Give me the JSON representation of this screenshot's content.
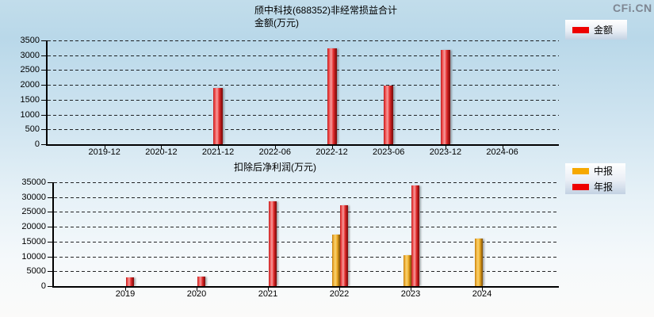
{
  "logo": "CFi.CN",
  "colors": {
    "annual_red": "#ee0000",
    "interim_yellow": "#f6a800",
    "grid_black": "#000000",
    "logo_gray": "#7e8692"
  },
  "chart_data": [
    {
      "type": "bar",
      "title": "颀中科技(688352)非经常损益合计",
      "subtitle": "金额(万元)",
      "categories": [
        "2019-12",
        "2020-12",
        "2021-12",
        "2022-06",
        "2022-12",
        "2023-06",
        "2023-12",
        "2024-06"
      ],
      "series": [
        {
          "name": "金额",
          "color": "#ee0000",
          "values": [
            null,
            null,
            1890,
            null,
            3240,
            1970,
            3170,
            null
          ]
        }
      ],
      "ylim": [
        0,
        3500
      ],
      "yticks": [
        0,
        500,
        1000,
        1500,
        2000,
        2500,
        3000,
        3500
      ],
      "grid": "dashed horizontal",
      "legend_position": "right-top"
    },
    {
      "type": "bar",
      "title": "扣除后净利润(万元)",
      "subtitle": "",
      "categories": [
        "2019",
        "2020",
        "2021",
        "2022",
        "2023",
        "2024"
      ],
      "series": [
        {
          "name": "中报",
          "color": "#f6a800",
          "values": [
            null,
            null,
            null,
            17300,
            10400,
            15900
          ]
        },
        {
          "name": "年报",
          "color": "#ee0000",
          "values": [
            2850,
            3100,
            28600,
            27200,
            34000,
            null
          ]
        }
      ],
      "ylim": [
        0,
        35000
      ],
      "yticks": [
        0,
        5000,
        10000,
        15000,
        20000,
        25000,
        30000,
        35000
      ],
      "grid": "dashed horizontal",
      "legend_position": "right-top"
    }
  ]
}
